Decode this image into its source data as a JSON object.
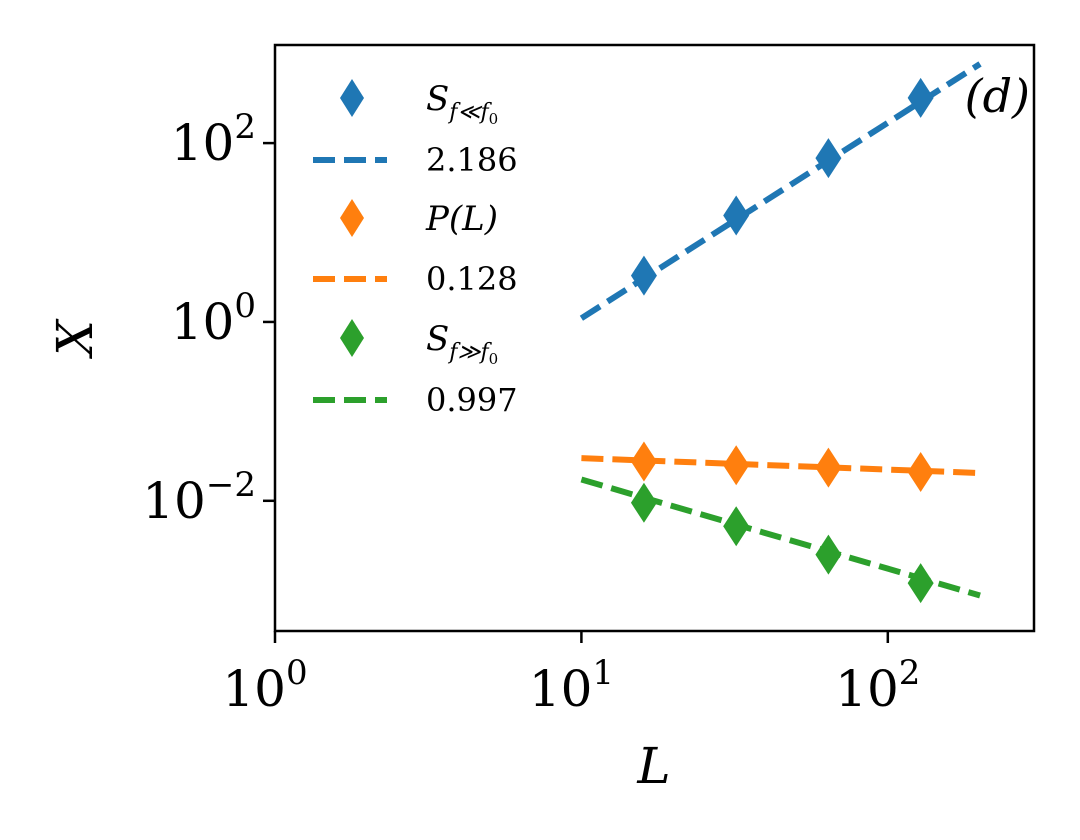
{
  "chart_data": {
    "type": "scatter",
    "panel_label": "(d)",
    "xlabel": "L",
    "ylabel": "X",
    "xscale": "log",
    "yscale": "log",
    "xlim": [
      1,
      300
    ],
    "ylim": [
      0.00035,
      1250
    ],
    "x_ticks": [
      {
        "value": 1,
        "base": "10",
        "exp": "0"
      },
      {
        "value": 10,
        "base": "10",
        "exp": "1"
      },
      {
        "value": 100,
        "base": "10",
        "exp": "2"
      }
    ],
    "y_ticks": [
      {
        "value": 0.01,
        "base": "10",
        "exp": "−2"
      },
      {
        "value": 1,
        "base": "10",
        "exp": "0"
      },
      {
        "value": 100,
        "base": "10",
        "exp": "2"
      }
    ],
    "series": [
      {
        "name": "S_{f≪f0}",
        "legend_main": "S",
        "legend_sub": "f≪f",
        "legend_subsub": "0",
        "color": "#1f77b4",
        "x": [
          16,
          32,
          64,
          128
        ],
        "y": [
          3.3,
          15.5,
          68,
          320
        ]
      },
      {
        "name": "P(L)",
        "legend_main": "P",
        "legend_rest": "(L)",
        "color": "#ff7f0e",
        "x": [
          16,
          32,
          64,
          128
        ],
        "y": [
          0.0275,
          0.025,
          0.0235,
          0.021
        ]
      },
      {
        "name": "S_{f≫f0}",
        "legend_main": "S",
        "legend_sub": "f≫f",
        "legend_subsub": "0",
        "color": "#2ca02c",
        "x": [
          16,
          32,
          64,
          128
        ],
        "y": [
          0.0095,
          0.0052,
          0.0025,
          0.0012
        ]
      }
    ],
    "fits": [
      {
        "label": "2.186",
        "slope": 2.186,
        "x_range": [
          10,
          200
        ],
        "y_at_10": 1.1,
        "color": "#1f77b4"
      },
      {
        "label": "0.128",
        "slope": -0.128,
        "x_range": [
          10,
          200
        ],
        "y_at_10": 0.03,
        "color": "#ff7f0e"
      },
      {
        "label": "0.997",
        "slope": -0.997,
        "x_range": [
          10,
          200
        ],
        "y_at_10": 0.0173,
        "color": "#2ca02c"
      }
    ],
    "legend": {
      "placement": "top-left"
    }
  }
}
